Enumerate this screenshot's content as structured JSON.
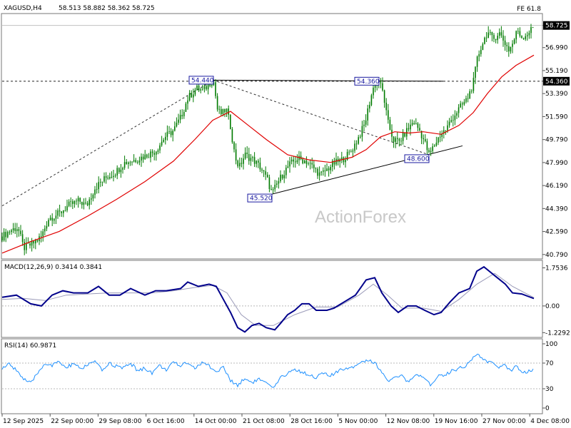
{
  "header": {
    "symbol": "XAGUSD,H4",
    "ohlc": "58.513 58.882 58.362 58.725",
    "fe_label": "FE 61.8"
  },
  "watermark": "ActionForex",
  "colors": {
    "candle": "#007b00",
    "ma": "#e00000",
    "macd": "#00008b",
    "macd_signal": "#9a9ab8",
    "rsi": "#1e90ff",
    "grid": "#b8b8b8",
    "label_box": "#1a1aa0"
  },
  "chart_data": [
    {
      "type": "candlestick",
      "title": "XAGUSD,H4",
      "y_ticks": [
        "58.725",
        "56.990",
        "55.190",
        "54.360",
        "53.390",
        "51.590",
        "49.790",
        "47.990",
        "46.190",
        "44.390",
        "42.590",
        "40.790"
      ],
      "ylim": [
        40.5,
        59.6
      ],
      "current_price": 58.725,
      "level_line": 54.36,
      "x_ticks": [
        "12 Sep 2025",
        "22 Sep 00:00",
        "29 Sep 08:00",
        "6 Oct 16:00",
        "14 Oct 00:00",
        "21 Oct 08:00",
        "28 Oct 16:00",
        "5 Nov 00:00",
        "12 Nov 08:00",
        "19 Nov 16:00",
        "27 Nov 00:00",
        "4 Dec 08:00"
      ],
      "annotations": [
        {
          "text": "54.440",
          "value": 54.44
        },
        {
          "text": "54.360",
          "value": 54.36
        },
        {
          "text": "45.520",
          "value": 45.52
        },
        {
          "text": "48.600",
          "value": 48.6
        }
      ],
      "price_path": [
        [
          0,
          42.2
        ],
        [
          12,
          42.7
        ],
        [
          22,
          42.9
        ],
        [
          30,
          41.3
        ],
        [
          42,
          41.6
        ],
        [
          55,
          42.2
        ],
        [
          65,
          43.6
        ],
        [
          80,
          44.0
        ],
        [
          92,
          44.6
        ],
        [
          108,
          45.0
        ],
        [
          118,
          44.6
        ],
        [
          130,
          46.0
        ],
        [
          145,
          46.8
        ],
        [
          158,
          47.2
        ],
        [
          172,
          48.0
        ],
        [
          186,
          48.2
        ],
        [
          200,
          48.5
        ],
        [
          215,
          48.9
        ],
        [
          228,
          50.0
        ],
        [
          240,
          50.5
        ],
        [
          250,
          51.5
        ],
        [
          260,
          53.0
        ],
        [
          272,
          53.8
        ],
        [
          282,
          53.6
        ],
        [
          290,
          54.2
        ],
        [
          296,
          54.44
        ],
        [
          302,
          52.0
        ],
        [
          308,
          51.8
        ],
        [
          314,
          52.2
        ],
        [
          320,
          50.8
        ],
        [
          326,
          48.5
        ],
        [
          332,
          47.6
        ],
        [
          340,
          48.6
        ],
        [
          352,
          48.2
        ],
        [
          362,
          47.6
        ],
        [
          372,
          46.6
        ],
        [
          378,
          45.52
        ],
        [
          384,
          46.2
        ],
        [
          392,
          47.0
        ],
        [
          402,
          47.8
        ],
        [
          414,
          48.3
        ],
        [
          426,
          48.1
        ],
        [
          436,
          47.6
        ],
        [
          446,
          47.0
        ],
        [
          454,
          47.4
        ],
        [
          464,
          47.9
        ],
        [
          476,
          48.2
        ],
        [
          488,
          48.8
        ],
        [
          498,
          49.8
        ],
        [
          508,
          51.0
        ],
        [
          516,
          53.0
        ],
        [
          522,
          54.2
        ],
        [
          528,
          54.36
        ],
        [
          534,
          53.4
        ],
        [
          540,
          51.2
        ],
        [
          548,
          49.8
        ],
        [
          556,
          49.6
        ],
        [
          566,
          50.4
        ],
        [
          576,
          51.2
        ],
        [
          584,
          50.6
        ],
        [
          592,
          49.6
        ],
        [
          598,
          48.6
        ],
        [
          606,
          49.4
        ],
        [
          614,
          50.2
        ],
        [
          622,
          50.6
        ],
        [
          630,
          51.4
        ],
        [
          640,
          52.2
        ],
        [
          652,
          53.0
        ],
        [
          660,
          54.2
        ],
        [
          666,
          56.2
        ],
        [
          672,
          57.2
        ],
        [
          680,
          58.2
        ],
        [
          688,
          57.6
        ],
        [
          696,
          58.2
        ],
        [
          704,
          57.4
        ],
        [
          710,
          56.8
        ],
        [
          716,
          57.4
        ],
        [
          722,
          58.4
        ],
        [
          728,
          57.8
        ],
        [
          734,
          58.0
        ],
        [
          740,
          58.3
        ],
        [
          746,
          58.725
        ]
      ],
      "moving_average": [
        [
          0,
          40.9
        ],
        [
          40,
          41.8
        ],
        [
          80,
          42.6
        ],
        [
          120,
          43.8
        ],
        [
          160,
          45.1
        ],
        [
          200,
          46.5
        ],
        [
          240,
          48.1
        ],
        [
          270,
          49.8
        ],
        [
          295,
          51.3
        ],
        [
          320,
          52.0
        ],
        [
          345,
          50.9
        ],
        [
          370,
          49.8
        ],
        [
          400,
          48.6
        ],
        [
          430,
          48.2
        ],
        [
          460,
          48.0
        ],
        [
          490,
          48.4
        ],
        [
          510,
          49.0
        ],
        [
          530,
          50.0
        ],
        [
          550,
          50.4
        ],
        [
          570,
          50.3
        ],
        [
          590,
          50.4
        ],
        [
          615,
          50.2
        ],
        [
          640,
          50.9
        ],
        [
          660,
          51.9
        ],
        [
          680,
          53.4
        ],
        [
          700,
          54.7
        ],
        [
          720,
          55.6
        ],
        [
          745,
          56.4
        ]
      ]
    },
    {
      "type": "line",
      "title": "MACD(12,26,9) 0.3414 0.3841",
      "y_ticks": [
        "1.7536",
        "0.00",
        "-1.2292"
      ],
      "ylim": [
        -1.35,
        2.0
      ],
      "series": [
        {
          "name": "MACD",
          "values": [
            [
              0,
              0.4
            ],
            [
              20,
              0.5
            ],
            [
              40,
              0.1
            ],
            [
              55,
              0.0
            ],
            [
              70,
              0.5
            ],
            [
              85,
              0.7
            ],
            [
              100,
              0.6
            ],
            [
              120,
              0.6
            ],
            [
              135,
              0.9
            ],
            [
              150,
              0.5
            ],
            [
              165,
              0.5
            ],
            [
              180,
              0.8
            ],
            [
              200,
              0.5
            ],
            [
              215,
              0.7
            ],
            [
              230,
              0.7
            ],
            [
              250,
              0.8
            ],
            [
              260,
              1.1
            ],
            [
              275,
              0.9
            ],
            [
              290,
              1.0
            ],
            [
              300,
              0.9
            ],
            [
              310,
              0.3
            ],
            [
              320,
              -0.3
            ],
            [
              330,
              -1.0
            ],
            [
              340,
              -1.2
            ],
            [
              350,
              -0.9
            ],
            [
              360,
              -0.8
            ],
            [
              370,
              -1.0
            ],
            [
              382,
              -1.1
            ],
            [
              390,
              -0.8
            ],
            [
              400,
              -0.4
            ],
            [
              410,
              -0.2
            ],
            [
              420,
              0.1
            ],
            [
              430,
              0.1
            ],
            [
              440,
              -0.2
            ],
            [
              455,
              -0.2
            ],
            [
              465,
              -0.1
            ],
            [
              480,
              0.2
            ],
            [
              495,
              0.5
            ],
            [
              510,
              1.2
            ],
            [
              522,
              1.3
            ],
            [
              532,
              0.6
            ],
            [
              545,
              0.0
            ],
            [
              555,
              -0.3
            ],
            [
              568,
              0.0
            ],
            [
              580,
              0.0
            ],
            [
              592,
              -0.2
            ],
            [
              605,
              -0.4
            ],
            [
              615,
              -0.3
            ],
            [
              628,
              0.2
            ],
            [
              640,
              0.6
            ],
            [
              655,
              0.8
            ],
            [
              665,
              1.6
            ],
            [
              675,
              1.8
            ],
            [
              690,
              1.4
            ],
            [
              705,
              1.0
            ],
            [
              715,
              0.6
            ],
            [
              728,
              0.55
            ],
            [
              745,
              0.3414
            ]
          ]
        },
        {
          "name": "Signal",
          "values": [
            [
              0,
              0.3
            ],
            [
              30,
              0.35
            ],
            [
              60,
              0.25
            ],
            [
              90,
              0.5
            ],
            [
              120,
              0.55
            ],
            [
              150,
              0.6
            ],
            [
              180,
              0.6
            ],
            [
              210,
              0.6
            ],
            [
              240,
              0.7
            ],
            [
              270,
              0.85
            ],
            [
              295,
              0.95
            ],
            [
              315,
              0.6
            ],
            [
              335,
              -0.4
            ],
            [
              355,
              -0.9
            ],
            [
              380,
              -0.9
            ],
            [
              410,
              -0.4
            ],
            [
              440,
              -0.05
            ],
            [
              470,
              -0.05
            ],
            [
              500,
              0.5
            ],
            [
              520,
              1.0
            ],
            [
              540,
              0.5
            ],
            [
              560,
              -0.1
            ],
            [
              590,
              -0.1
            ],
            [
              615,
              -0.25
            ],
            [
              640,
              0.3
            ],
            [
              665,
              1.0
            ],
            [
              690,
              1.5
            ],
            [
              715,
              0.9
            ],
            [
              745,
              0.3841
            ]
          ]
        }
      ]
    },
    {
      "type": "line",
      "title": "RSI(14) 60.9871",
      "y_ticks": [
        "100",
        "70",
        "30",
        "0"
      ],
      "ylim": [
        0,
        100
      ],
      "levels": [
        70,
        30
      ],
      "series": [
        {
          "name": "RSI",
          "values": [
            [
              0,
              62
            ],
            [
              10,
              68
            ],
            [
              20,
              60
            ],
            [
              30,
              45
            ],
            [
              40,
              38
            ],
            [
              50,
              55
            ],
            [
              60,
              70
            ],
            [
              70,
              66
            ],
            [
              80,
              72
            ],
            [
              90,
              62
            ],
            [
              100,
              70
            ],
            [
              110,
              60
            ],
            [
              120,
              68
            ],
            [
              130,
              72
            ],
            [
              140,
              58
            ],
            [
              150,
              70
            ],
            [
              160,
              65
            ],
            [
              170,
              62
            ],
            [
              180,
              70
            ],
            [
              190,
              58
            ],
            [
              200,
              62
            ],
            [
              210,
              55
            ],
            [
              220,
              66
            ],
            [
              230,
              60
            ],
            [
              240,
              70
            ],
            [
              250,
              66
            ],
            [
              260,
              72
            ],
            [
              270,
              62
            ],
            [
              280,
              70
            ],
            [
              290,
              66
            ],
            [
              300,
              56
            ],
            [
              310,
              64
            ],
            [
              320,
              42
            ],
            [
              330,
              36
            ],
            [
              340,
              46
            ],
            [
              350,
              40
            ],
            [
              360,
              45
            ],
            [
              370,
              38
            ],
            [
              380,
              30
            ],
            [
              390,
              46
            ],
            [
              400,
              55
            ],
            [
              410,
              60
            ],
            [
              420,
              56
            ],
            [
              430,
              52
            ],
            [
              440,
              48
            ],
            [
              450,
              54
            ],
            [
              460,
              50
            ],
            [
              470,
              56
            ],
            [
              480,
              62
            ],
            [
              490,
              64
            ],
            [
              500,
              70
            ],
            [
              510,
              75
            ],
            [
              520,
              72
            ],
            [
              530,
              60
            ],
            [
              540,
              42
            ],
            [
              550,
              46
            ],
            [
              560,
              50
            ],
            [
              570,
              40
            ],
            [
              580,
              52
            ],
            [
              590,
              46
            ],
            [
              600,
              36
            ],
            [
              610,
              50
            ],
            [
              620,
              52
            ],
            [
              630,
              58
            ],
            [
              640,
              62
            ],
            [
              650,
              66
            ],
            [
              660,
              80
            ],
            [
              668,
              83
            ],
            [
              675,
              74
            ],
            [
              685,
              70
            ],
            [
              695,
              64
            ],
            [
              705,
              66
            ],
            [
              712,
              58
            ],
            [
              720,
              66
            ],
            [
              730,
              56
            ],
            [
              738,
              58
            ],
            [
              745,
              60.9871
            ]
          ]
        }
      ]
    }
  ]
}
